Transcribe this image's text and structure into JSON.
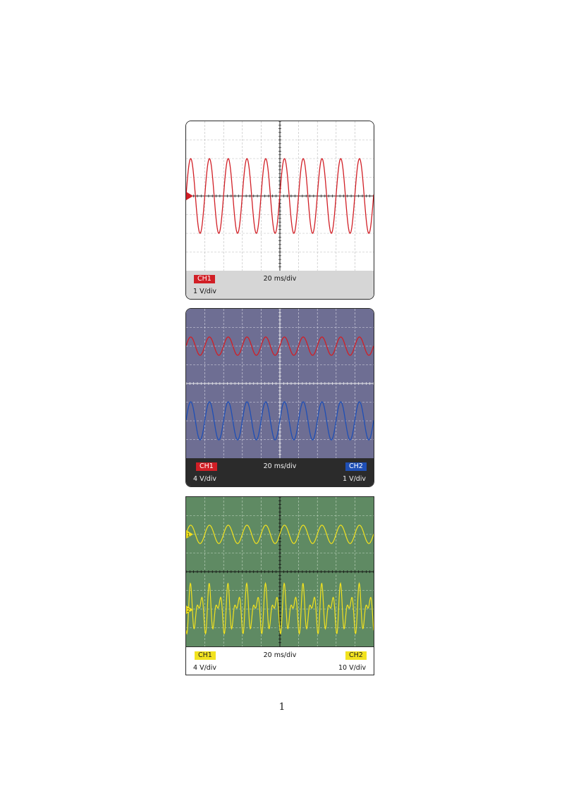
{
  "colors": {
    "red_trace": "#d11f26",
    "blue_trace": "#1f4fb5",
    "yellow_trace": "#f2e21e",
    "scope1_screen": "#ffffff",
    "scope2_screen": "#6e6e93",
    "scope3_screen": "#5f8a63"
  },
  "scopes": [
    {
      "ch1_label": "CH1",
      "ch1_scale": "1 V/div",
      "timebase": "20 ms/div"
    },
    {
      "ch1_label": "CH1",
      "ch1_scale": "4 V/div",
      "ch2_label": "CH2",
      "ch2_scale": "1 V/div",
      "timebase": "20 ms/div"
    },
    {
      "ch1_label": "CH1",
      "ch1_scale": "4 V/div",
      "ch2_label": "CH2",
      "ch2_scale": "10 V/div",
      "timebase": "20 ms/div",
      "ch1_marker": "1",
      "ch2_marker": "2"
    }
  ],
  "page_number": "1"
}
